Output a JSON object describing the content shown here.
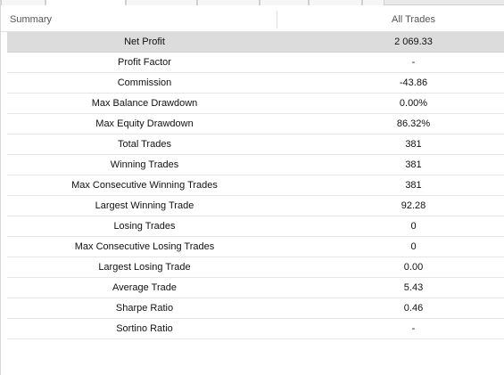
{
  "header": {
    "left_label": "Summary",
    "right_label": "All Trades"
  },
  "rows": [
    {
      "label": "Net Profit",
      "value": "2 069.33"
    },
    {
      "label": "Profit Factor",
      "value": "-"
    },
    {
      "label": "Commission",
      "value": "-43.86"
    },
    {
      "label": "Max Balance Drawdown",
      "value": "0.00%"
    },
    {
      "label": "Max Equity Drawdown",
      "value": "86.32%"
    },
    {
      "label": "Total Trades",
      "value": "381"
    },
    {
      "label": "Winning Trades",
      "value": "381"
    },
    {
      "label": "Max Consecutive Winning Trades",
      "value": "381"
    },
    {
      "label": "Largest Winning Trade",
      "value": "92.28"
    },
    {
      "label": "Losing Trades",
      "value": "0"
    },
    {
      "label": "Max Consecutive Losing Trades",
      "value": "0"
    },
    {
      "label": "Largest Losing Trade",
      "value": "0.00"
    },
    {
      "label": "Average Trade",
      "value": "5.43"
    },
    {
      "label": "Sharpe Ratio",
      "value": "0.46"
    },
    {
      "label": "Sortino Ratio",
      "value": "-"
    }
  ],
  "selected_row_index": 0
}
